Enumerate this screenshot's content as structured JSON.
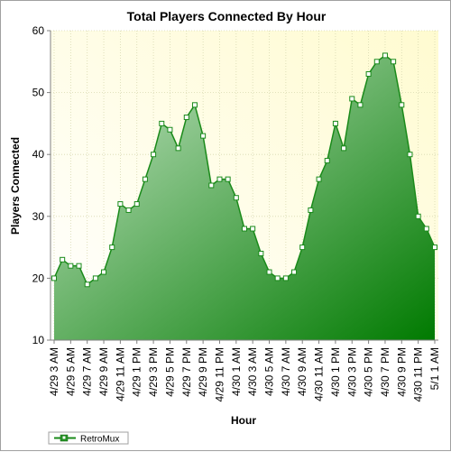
{
  "chart_data": {
    "type": "area",
    "title": "Total Players Connected By Hour",
    "xlabel": "Hour",
    "ylabel": "Players Connected",
    "ylim": [
      10,
      60
    ],
    "yticks": [
      10,
      20,
      30,
      40,
      50,
      60
    ],
    "grid": true,
    "legend_position": "bottom-left",
    "x_tick_labels": [
      "4/29 3 AM",
      "4/29 5 AM",
      "4/29 7 AM",
      "4/29 9 AM",
      "4/29 11 AM",
      "4/29 1 PM",
      "4/29 3 PM",
      "4/29 5 PM",
      "4/29 7 PM",
      "4/29 9 PM",
      "4/29 11 PM",
      "4/30 1 AM",
      "4/30 3 AM",
      "4/30 5 AM",
      "4/30 7 AM",
      "4/30 9 AM",
      "4/30 11 AM",
      "4/30 1 PM",
      "4/30 3 PM",
      "4/30 5 PM",
      "4/30 7 PM",
      "4/30 9 PM",
      "4/30 11 PM",
      "5/1 1 AM"
    ],
    "series": [
      {
        "name": "RetroMux",
        "color": "#1a8a1a",
        "values": [
          20,
          23,
          22,
          22,
          19,
          20,
          21,
          25,
          32,
          31,
          32,
          36,
          40,
          45,
          44,
          41,
          46,
          48,
          43,
          35,
          36,
          36,
          33,
          28,
          28,
          24,
          21,
          20,
          20,
          21,
          25,
          31,
          36,
          39,
          45,
          41,
          49,
          48,
          53,
          55,
          56,
          55,
          48,
          40,
          30,
          28,
          25
        ]
      }
    ]
  },
  "colors": {
    "plot_bg_light": "#fffbd0",
    "plot_bg_white": "#ffffff",
    "area_light": "#c8e6c8",
    "area_dark": "#007a00",
    "line": "#1a8a1a"
  }
}
